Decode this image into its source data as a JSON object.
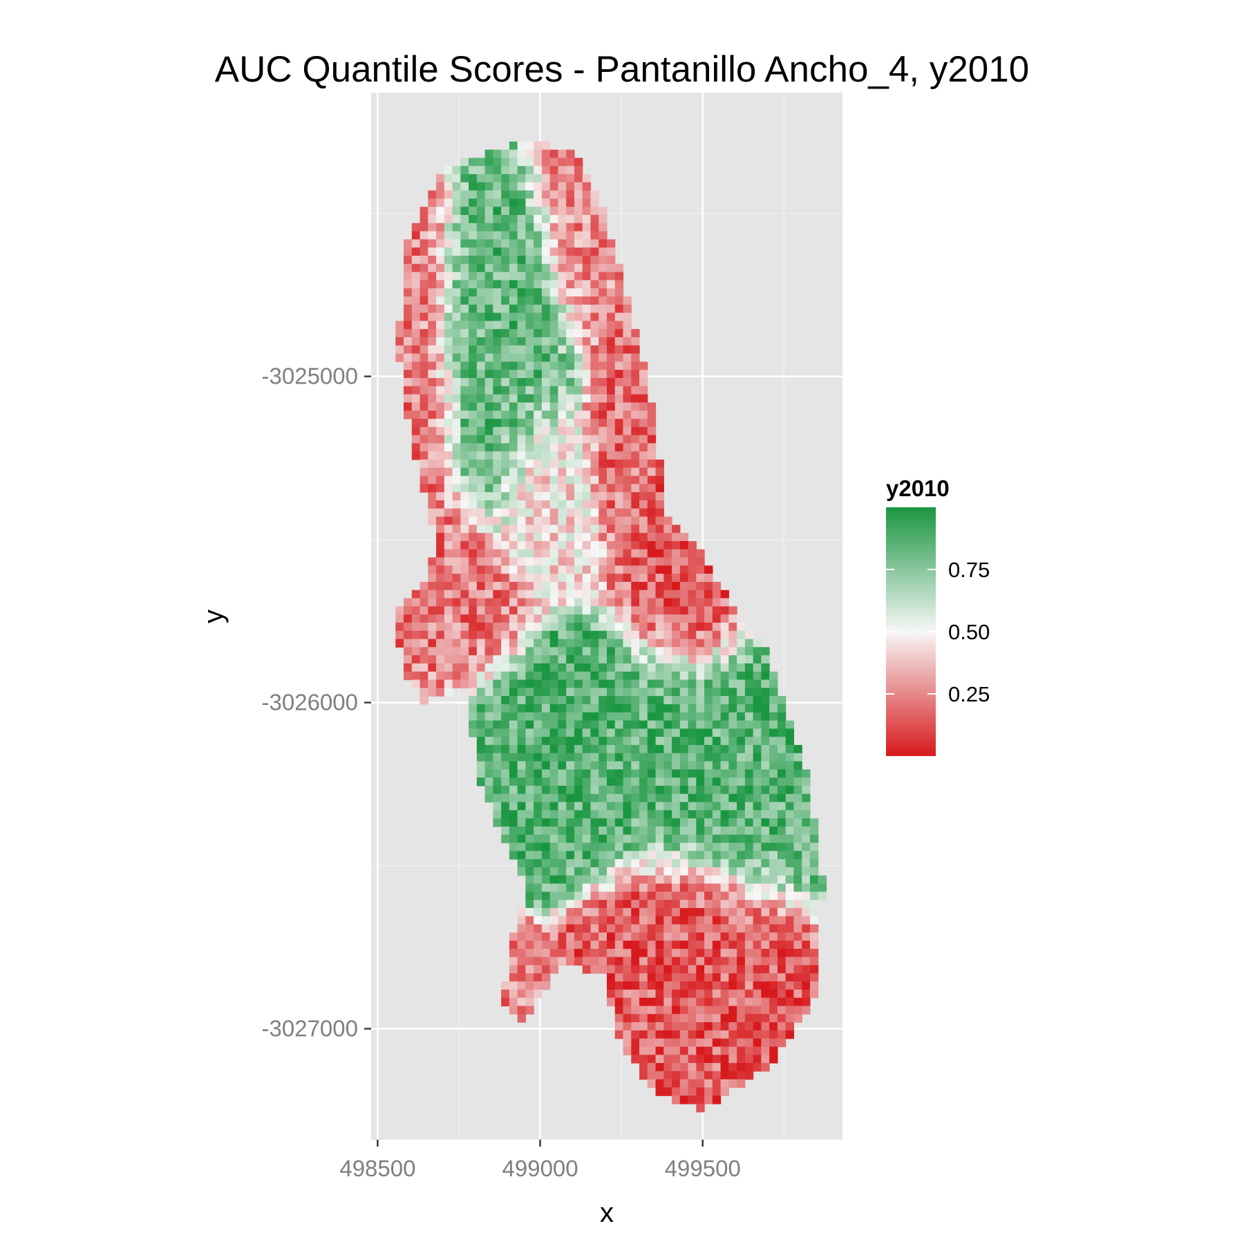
{
  "chart_data": {
    "type": "heatmap",
    "title": "AUC Quantile Scores - Pantanillo Ancho_4, y2010",
    "xlabel": "x",
    "ylabel": "y",
    "x_ticks": [
      498500,
      499000,
      499500
    ],
    "y_ticks": [
      -3025000,
      -3026000,
      -3027000
    ],
    "xlim": [
      498480,
      499930
    ],
    "ylim": [
      -3027340,
      -3024130
    ],
    "grid": true,
    "cell_size": 25,
    "value_range": [
      0,
      1
    ],
    "colors": {
      "low": "#d7191c",
      "mid": "#f7f7f7",
      "high": "#1a9641"
    },
    "legend": {
      "title": "y2010",
      "position": "right",
      "breaks": [
        0.75,
        0.5,
        0.25
      ],
      "labels": [
        "0.75",
        "0.50",
        "0.25"
      ]
    },
    "region_outline": [
      [
        499000,
        -3024280
      ],
      [
        499120,
        -3024320
      ],
      [
        499200,
        -3024500
      ],
      [
        499270,
        -3024770
      ],
      [
        499330,
        -3024990
      ],
      [
        499360,
        -3025200
      ],
      [
        499390,
        -3025420
      ],
      [
        499480,
        -3025520
      ],
      [
        499600,
        -3025720
      ],
      [
        499700,
        -3025850
      ],
      [
        499820,
        -3026200
      ],
      [
        499870,
        -3026550
      ],
      [
        499850,
        -3026900
      ],
      [
        499700,
        -3027120
      ],
      [
        499500,
        -3027250
      ],
      [
        499350,
        -3027200
      ],
      [
        499250,
        -3027050
      ],
      [
        499190,
        -3026830
      ],
      [
        499060,
        -3026800
      ],
      [
        498950,
        -3026990
      ],
      [
        498880,
        -3026930
      ],
      [
        498920,
        -3026700
      ],
      [
        498960,
        -3026580
      ],
      [
        498900,
        -3026450
      ],
      [
        498800,
        -3026200
      ],
      [
        498780,
        -3025950
      ],
      [
        498640,
        -3026000
      ],
      [
        498570,
        -3025880
      ],
      [
        498560,
        -3025720
      ],
      [
        498640,
        -3025640
      ],
      [
        498680,
        -3025520
      ],
      [
        498600,
        -3025180
      ],
      [
        498560,
        -3024900
      ],
      [
        498590,
        -3024580
      ],
      [
        498700,
        -3024370
      ],
      [
        498860,
        -3024300
      ]
    ],
    "value_zones": [
      {
        "center": [
          498860,
          -3024880
        ],
        "radius": [
          180,
          400
        ],
        "value": 0.82
      },
      {
        "center": [
          498930,
          -3024720
        ],
        "radius": [
          110,
          250
        ],
        "value": 0.85
      },
      {
        "center": [
          498630,
          -3025000
        ],
        "radius": [
          90,
          650
        ],
        "value": 0.2
      },
      {
        "center": [
          498720,
          -3025700
        ],
        "radius": [
          140,
          220
        ],
        "value": 0.22
      },
      {
        "center": [
          499120,
          -3024520
        ],
        "radius": [
          120,
          280
        ],
        "value": 0.25
      },
      {
        "center": [
          499250,
          -3025150
        ],
        "radius": [
          80,
          250
        ],
        "value": 0.2
      },
      {
        "center": [
          499480,
          -3025650
        ],
        "radius": [
          140,
          220
        ],
        "value": 0.15
      },
      {
        "center": [
          499050,
          -3026200
        ],
        "radius": [
          320,
          230
        ],
        "value": 0.86
      },
      {
        "center": [
          499580,
          -3026150
        ],
        "radius": [
          260,
          300
        ],
        "value": 0.85
      },
      {
        "center": [
          499450,
          -3026900
        ],
        "radius": [
          230,
          320
        ],
        "value": 0.15
      },
      {
        "center": [
          498950,
          -3026900
        ],
        "radius": [
          90,
          130
        ],
        "value": 0.25
      },
      {
        "center": [
          499030,
          -3025350
        ],
        "radius": [
          120,
          200
        ],
        "value": 0.45
      }
    ],
    "noise_seed": 2010,
    "noise_amplitude": 0.35
  }
}
